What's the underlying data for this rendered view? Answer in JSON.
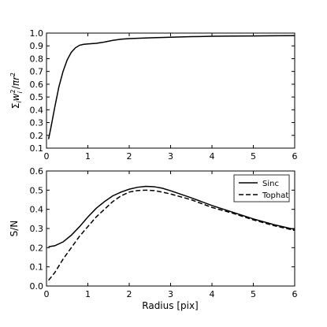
{
  "chart_data": [
    {
      "type": "line",
      "title": "",
      "xlabel": "",
      "ylabel": "Σ_i w_i² / πr²",
      "ylabel_parts": {
        "sym": "Σ",
        "i1": "i",
        "w": "w",
        "i2": "i",
        "two1": "2",
        "slash": "/",
        "pi": "π",
        "r": "r",
        "two2": "2"
      },
      "xlim": [
        0,
        6
      ],
      "ylim": [
        0.1,
        1.0
      ],
      "xticks": [
        "0",
        "1",
        "2",
        "3",
        "4",
        "5",
        "6"
      ],
      "yticks": [
        "0.1",
        "0.2",
        "0.3",
        "0.4",
        "0.5",
        "0.6",
        "0.7",
        "0.8",
        "0.9",
        "1.0"
      ],
      "grid": false,
      "series": [
        {
          "style": "solid",
          "x": [
            0.05,
            0.1,
            0.2,
            0.3,
            0.4,
            0.5,
            0.6,
            0.7,
            0.8,
            0.9,
            1.0,
            1.2,
            1.4,
            1.6,
            1.8,
            2.0,
            2.5,
            3.0,
            3.5,
            4.0,
            4.5,
            5.0,
            5.5,
            6.0
          ],
          "y": [
            0.17,
            0.25,
            0.42,
            0.58,
            0.7,
            0.79,
            0.85,
            0.885,
            0.905,
            0.912,
            0.915,
            0.92,
            0.93,
            0.943,
            0.952,
            0.957,
            0.963,
            0.968,
            0.972,
            0.975,
            0.977,
            0.978,
            0.979,
            0.98
          ]
        }
      ]
    },
    {
      "type": "line",
      "title": "",
      "xlabel": "Radius [pix]",
      "ylabel": "S/N",
      "xlim": [
        0,
        6
      ],
      "ylim": [
        0.0,
        0.6
      ],
      "xticks": [
        "0",
        "1",
        "2",
        "3",
        "4",
        "5",
        "6"
      ],
      "yticks": [
        "0.0",
        "0.1",
        "0.2",
        "0.3",
        "0.4",
        "0.5",
        "0.6"
      ],
      "grid": false,
      "legend_position": "top-right",
      "series": [
        {
          "name": "Sinc",
          "style": "solid",
          "x": [
            0.05,
            0.2,
            0.4,
            0.6,
            0.8,
            1.0,
            1.2,
            1.4,
            1.6,
            1.8,
            2.0,
            2.2,
            2.4,
            2.6,
            2.8,
            3.0,
            3.5,
            4.0,
            4.5,
            5.0,
            5.5,
            6.0
          ],
          "y": [
            0.205,
            0.21,
            0.23,
            0.265,
            0.31,
            0.36,
            0.405,
            0.44,
            0.47,
            0.49,
            0.505,
            0.515,
            0.52,
            0.518,
            0.51,
            0.497,
            0.46,
            0.42,
            0.385,
            0.35,
            0.32,
            0.295
          ]
        },
        {
          "name": "Tophat",
          "style": "dashed",
          "x": [
            0.05,
            0.2,
            0.4,
            0.6,
            0.8,
            1.0,
            1.2,
            1.4,
            1.6,
            1.8,
            2.0,
            2.2,
            2.4,
            2.6,
            2.8,
            3.0,
            3.5,
            4.0,
            4.5,
            5.0,
            5.5,
            6.0
          ],
          "y": [
            0.03,
            0.07,
            0.14,
            0.2,
            0.26,
            0.31,
            0.36,
            0.4,
            0.44,
            0.47,
            0.49,
            0.498,
            0.5,
            0.498,
            0.49,
            0.48,
            0.45,
            0.41,
            0.38,
            0.345,
            0.315,
            0.29
          ]
        }
      ]
    }
  ]
}
